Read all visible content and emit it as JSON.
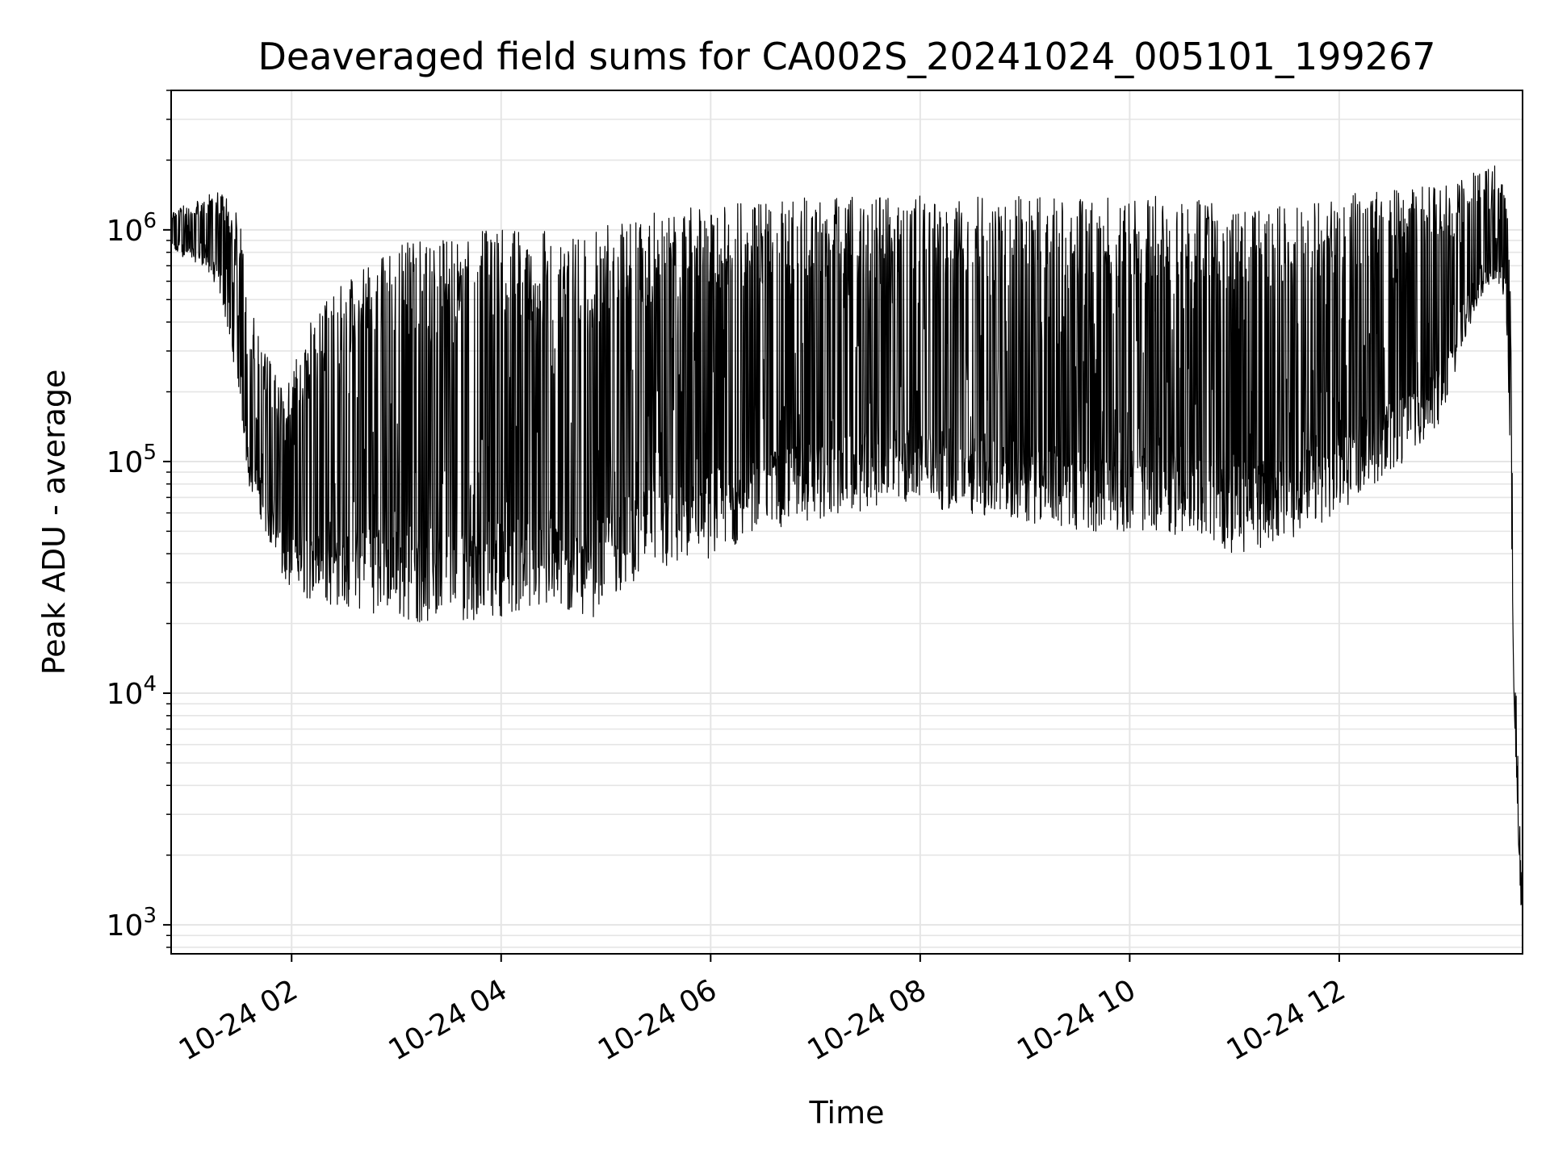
{
  "chart_data": {
    "type": "line",
    "title": "Deaveraged field sums for CA002S_20241024_005101_199267",
    "xlabel": "Time",
    "ylabel": "Peak ADU - average",
    "yscale": "log",
    "ylim": [
      750,
      4000000
    ],
    "xlim": [
      "2024-10-24T00:51",
      "2024-10-24T13:45"
    ],
    "grid": true,
    "line_color": "#000000",
    "grid_color": "#e5e5e5",
    "xticks": [
      {
        "value": "2024-10-24T02:00",
        "label": "10-24 02"
      },
      {
        "value": "2024-10-24T04:00",
        "label": "10-24 04"
      },
      {
        "value": "2024-10-24T06:00",
        "label": "10-24 06"
      },
      {
        "value": "2024-10-24T08:00",
        "label": "10-24 08"
      },
      {
        "value": "2024-10-24T10:00",
        "label": "10-24 10"
      },
      {
        "value": "2024-10-24T12:00",
        "label": "10-24 12"
      }
    ],
    "yticks": [
      {
        "value": 1000,
        "base": "10",
        "exp": "3"
      },
      {
        "value": 10000,
        "base": "10",
        "exp": "4"
      },
      {
        "value": 100000,
        "base": "10",
        "exp": "5"
      },
      {
        "value": 1000000,
        "base": "10",
        "exp": "6"
      }
    ],
    "series": [
      {
        "band": "lower",
        "x": [
          "2024-10-24T00:51",
          "2024-10-24T01:10",
          "2024-10-24T01:20",
          "2024-10-24T01:30",
          "2024-10-24T01:35",
          "2024-10-24T01:45",
          "2024-10-24T01:55",
          "2024-10-24T02:10",
          "2024-10-24T02:30",
          "2024-10-24T02:50",
          "2024-10-24T03:10",
          "2024-10-24T03:30",
          "2024-10-24T03:50",
          "2024-10-24T04:10",
          "2024-10-24T04:30",
          "2024-10-24T04:50",
          "2024-10-24T05:00",
          "2024-10-24T05:15",
          "2024-10-24T05:30",
          "2024-10-24T06:00",
          "2024-10-24T06:30",
          "2024-10-24T07:00",
          "2024-10-24T07:30",
          "2024-10-24T08:00",
          "2024-10-24T08:30",
          "2024-10-24T09:00",
          "2024-10-24T09:30",
          "2024-10-24T10:00",
          "2024-10-24T10:30",
          "2024-10-24T11:00",
          "2024-10-24T11:30",
          "2024-10-24T12:00",
          "2024-10-24T12:20",
          "2024-10-24T12:40",
          "2024-10-24T13:00",
          "2024-10-24T13:10",
          "2024-10-24T13:20",
          "2024-10-24T13:30",
          "2024-10-24T13:35",
          "2024-10-24T13:38",
          "2024-10-24T13:40",
          "2024-10-24T13:42",
          "2024-10-24T13:44"
        ],
        "y": [
          800000,
          700000,
          500000,
          200000,
          80000,
          50000,
          30000,
          25000,
          23000,
          22000,
          20000,
          20000,
          21000,
          22000,
          22000,
          20000,
          25000,
          30000,
          32000,
          38000,
          50000,
          55000,
          62000,
          65000,
          58000,
          55000,
          50000,
          50000,
          48000,
          40000,
          45000,
          60000,
          80000,
          100000,
          150000,
          300000,
          500000,
          600000,
          500000,
          100000,
          10000,
          3000,
          1200
        ]
      },
      {
        "band": "upper",
        "x": [
          "2024-10-24T00:51",
          "2024-10-24T01:10",
          "2024-10-24T01:20",
          "2024-10-24T01:30",
          "2024-10-24T01:35",
          "2024-10-24T01:45",
          "2024-10-24T01:55",
          "2024-10-24T02:10",
          "2024-10-24T02:30",
          "2024-10-24T02:50",
          "2024-10-24T03:10",
          "2024-10-24T03:30",
          "2024-10-24T03:50",
          "2024-10-24T04:10",
          "2024-10-24T04:30",
          "2024-10-24T04:50",
          "2024-10-24T05:00",
          "2024-10-24T05:15",
          "2024-10-24T05:30",
          "2024-10-24T06:00",
          "2024-10-24T06:30",
          "2024-10-24T07:00",
          "2024-10-24T07:30",
          "2024-10-24T08:00",
          "2024-10-24T08:30",
          "2024-10-24T09:00",
          "2024-10-24T09:30",
          "2024-10-24T10:00",
          "2024-10-24T10:30",
          "2024-10-24T11:00",
          "2024-10-24T11:30",
          "2024-10-24T12:00",
          "2024-10-24T12:20",
          "2024-10-24T12:40",
          "2024-10-24T13:00",
          "2024-10-24T13:10",
          "2024-10-24T13:20",
          "2024-10-24T13:30",
          "2024-10-24T13:35",
          "2024-10-24T13:38",
          "2024-10-24T13:40",
          "2024-10-24T13:42",
          "2024-10-24T13:44"
        ],
        "y": [
          1200000,
          1400000,
          1500000,
          1200000,
          500000,
          300000,
          200000,
          400000,
          600000,
          800000,
          900000,
          900000,
          1000000,
          1000000,
          1000000,
          900000,
          1100000,
          1100000,
          1200000,
          1300000,
          1300000,
          1400000,
          1400000,
          1400000,
          1400000,
          1400000,
          1400000,
          1400000,
          1400000,
          1300000,
          1300000,
          1400000,
          1500000,
          1500000,
          1600000,
          1700000,
          1800000,
          1900000,
          1500000,
          800000,
          15000,
          8000,
          1800
        ]
      }
    ]
  }
}
